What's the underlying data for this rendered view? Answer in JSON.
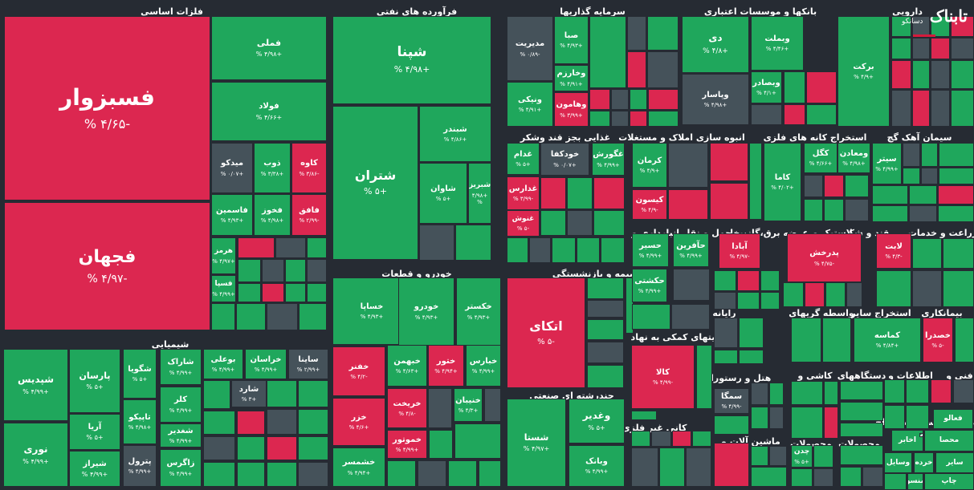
{
  "colors": {
    "background": "#262b33",
    "positive": "#1fa75c",
    "positive_light": "#27c36f",
    "negative": "#dc2750",
    "negative_light": "#e8325f",
    "neutral": "#45525a"
  },
  "watermark": {
    "main": "تابناک",
    "sub": "دسانکو"
  },
  "sectors": [
    {
      "name": "فلزات اساسی"
    },
    {
      "name": "فرآورده های نفتی"
    },
    {
      "name": "سرمایه گذاریها"
    },
    {
      "name": "بانکها و موسسات اعتباری"
    },
    {
      "name": "دارویی"
    },
    {
      "name": "شیمیایی"
    },
    {
      "name": "خودرو و قطعات"
    },
    {
      "name": "بیمه و بازنشستگی"
    },
    {
      "name": "غذایی بجز قند وشکر"
    },
    {
      "name": "انبوه سازی املاک و مستغلات"
    },
    {
      "name": "استخراج کانه های فلزی"
    },
    {
      "name": "سیمان آهک گچ"
    },
    {
      "name": "حمل و نقل انبارداری و"
    },
    {
      "name": "عرضه برق،گاز،بخار"
    },
    {
      "name": "لاستیک و"
    },
    {
      "name": "قند و شکر"
    },
    {
      "name": "زراعت و خدمات"
    },
    {
      "name": "رایانه"
    },
    {
      "name": "واسطه گریهای"
    },
    {
      "name": "استخراج سایر"
    },
    {
      "name": "بیمانکاری"
    },
    {
      "name": "فعالیتهای کمکی به نهاد"
    },
    {
      "name": "هتل و رستوران"
    },
    {
      "name": "کاشی و"
    },
    {
      "name": "دستگاههای"
    },
    {
      "name": "اطلاعات و"
    },
    {
      "name": "فنی و"
    },
    {
      "name": "چندرشته ای صنعتی"
    },
    {
      "name": "کانی غیر فلزی"
    },
    {
      "name": "ماشین آلات و"
    },
    {
      "name": "محصولات"
    },
    {
      "name": "محصولات"
    },
    {
      "name": "مخابرات"
    },
    {
      "name": "سایر"
    },
    {
      "name": "استخراج"
    }
  ],
  "stocks": [
    {
      "name": "فسبزوار",
      "pct": "-۴/۶۵ %",
      "trend": "neg"
    },
    {
      "name": "فجهان",
      "pct": "-۴/۹۷ %",
      "trend": "neg"
    },
    {
      "name": "فملی",
      "pct": "+۴/۹۸ %",
      "trend": "pos"
    },
    {
      "name": "فولاد",
      "pct": "+۴/۶۶ %",
      "trend": "pos"
    },
    {
      "name": "میدکو",
      "pct": "+۰/۰۷ %",
      "trend": "neu"
    },
    {
      "name": "ذوب",
      "pct": "+۳/۳۸ %",
      "trend": "pos"
    },
    {
      "name": "کاوه",
      "pct": "-۳/۸۶ %",
      "trend": "neg"
    },
    {
      "name": "فاسمین",
      "pct": "+۴/۹۳ %",
      "trend": "pos"
    },
    {
      "name": "فخوز",
      "pct": "+۴/۹۸ %",
      "trend": "pos"
    },
    {
      "name": "فافق",
      "pct": "-۲/۹۹ %",
      "trend": "neg"
    },
    {
      "name": "هرمز",
      "pct": "+۴/۹۷ %",
      "trend": "pos"
    },
    {
      "name": "فسپا",
      "pct": "+۴/۹۹ %",
      "trend": "pos"
    },
    {
      "name": "شپنا",
      "pct": "+۴/۹۸ %",
      "trend": "pos"
    },
    {
      "name": "شتران",
      "pct": "+۵ %",
      "trend": "pos"
    },
    {
      "name": "شبندر",
      "pct": "+۴/۸۶ %",
      "trend": "pos"
    },
    {
      "name": "شاوان",
      "pct": "+۵ %",
      "trend": "pos"
    },
    {
      "name": "شبریز",
      "pct": "+۴/۹۸ %",
      "trend": "pos"
    },
    {
      "name": "مدیریت",
      "pct": "-۰/۸۹ %",
      "trend": "neu"
    },
    {
      "name": "صبا",
      "pct": "+۴/۹۳ %",
      "trend": "pos"
    },
    {
      "name": "وخارزم",
      "pct": "+۴/۹۱ %",
      "trend": "pos"
    },
    {
      "name": "ونیکی",
      "pct": "+۴/۹۱ %",
      "trend": "pos"
    },
    {
      "name": "وهامون",
      "pct": "+۳/۹۹ %",
      "trend": "neg"
    },
    {
      "name": "دی",
      "pct": "+۴/۸ %",
      "trend": "pos"
    },
    {
      "name": "وبملت",
      "pct": "+۴/۴۶ %",
      "trend": "pos"
    },
    {
      "name": "وپاسار",
      "pct": "+۴/۹۸ %",
      "trend": "neu"
    },
    {
      "name": "وبصادر",
      "pct": "+۴/۱ %",
      "trend": "pos"
    },
    {
      "name": "برکت",
      "pct": "+۴/۹ %",
      "trend": "pos"
    },
    {
      "name": "شپدیس",
      "pct": "+۴/۹۹ %",
      "trend": "pos"
    },
    {
      "name": "نوری",
      "pct": "+۴/۹۹ %",
      "trend": "pos"
    },
    {
      "name": "پارسان",
      "pct": "+۵ %",
      "trend": "pos"
    },
    {
      "name": "آریا",
      "pct": "+۵ %",
      "trend": "pos"
    },
    {
      "name": "شیراز",
      "pct": "+۴/۹۹ %",
      "trend": "pos"
    },
    {
      "name": "شگویا",
      "pct": "+۵ %",
      "trend": "pos"
    },
    {
      "name": "تاپیکو",
      "pct": "+۴/۹۸ %",
      "trend": "pos"
    },
    {
      "name": "پترول",
      "pct": "+۴/۹۹ %",
      "trend": "neu"
    },
    {
      "name": "شاراک",
      "pct": "+۴/۹۹ %",
      "trend": "pos"
    },
    {
      "name": "بوعلی",
      "pct": "+۴/۹۹ %",
      "trend": "pos"
    },
    {
      "name": "خراسان",
      "pct": "+۴/۹۹ %",
      "trend": "pos"
    },
    {
      "name": "ساینا",
      "pct": "+۲/۹۹ %",
      "trend": "neu"
    },
    {
      "name": "کلر",
      "pct": "+۴/۹۹ %",
      "trend": "pos"
    },
    {
      "name": "شغدیر",
      "pct": "+۴/۹۹ %",
      "trend": "pos"
    },
    {
      "name": "زاگرس",
      "pct": "+۴/۹۹ %",
      "trend": "pos"
    },
    {
      "name": "شارد",
      "pct": "+۳ %",
      "trend": "neu"
    },
    {
      "name": "خساپا",
      "pct": "+۴/۹۳ %",
      "trend": "pos"
    },
    {
      "name": "خودرو",
      "pct": "+۴/۹۳ %",
      "trend": "pos"
    },
    {
      "name": "خکستر",
      "pct": "+۴/۹۳ %",
      "trend": "pos"
    },
    {
      "name": "خفنر",
      "pct": "-۴/۲ %",
      "trend": "neg"
    },
    {
      "name": "خبهمن",
      "pct": "+۴/۶۳ %",
      "trend": "pos"
    },
    {
      "name": "ختور",
      "pct": "+۴/۹۴ %",
      "trend": "neg"
    },
    {
      "name": "خبارس",
      "pct": "+۴/۹۹ %",
      "trend": "pos"
    },
    {
      "name": "خزر",
      "pct": "+۴/۶ %",
      "trend": "neg"
    },
    {
      "name": "خریخت",
      "pct": "-۴/۸ %",
      "trend": "neg"
    },
    {
      "name": "خنیبان",
      "pct": "+۴/۳ %",
      "trend": "pos"
    },
    {
      "name": "خموتور",
      "pct": "+۴/۹۹ %",
      "trend": "neg"
    },
    {
      "name": "خشمسر",
      "pct": "+۴/۹۴ %",
      "trend": "pos"
    },
    {
      "name": "اتکای",
      "pct": "-۵ %",
      "trend": "neg"
    },
    {
      "name": "غدام",
      "pct": "+۵ %",
      "trend": "pos"
    },
    {
      "name": "خودکفا",
      "pct": "+۰/۰۷ %",
      "trend": "neu"
    },
    {
      "name": "غگورش",
      "pct": "+۴/۹۹ %",
      "trend": "pos"
    },
    {
      "name": "غدارس",
      "pct": "-۳/۹۹ %",
      "trend": "neg"
    },
    {
      "name": "غنوش",
      "pct": "-۵ %",
      "trend": "neg"
    },
    {
      "name": "کرمان",
      "pct": "+۴/۹ %",
      "trend": "pos"
    },
    {
      "name": "کیسون",
      "pct": "-۴/۹ %",
      "trend": "neg"
    },
    {
      "name": "کگل",
      "pct": "+۴/۶۶ %",
      "trend": "pos"
    },
    {
      "name": "ومعادن",
      "pct": "+۴/۹۸ %",
      "trend": "pos"
    },
    {
      "name": "کاما",
      "pct": "+۴/۰۲ %",
      "trend": "pos"
    },
    {
      "name": "سیتر",
      "pct": "+۴/۹۹ %",
      "trend": "pos"
    },
    {
      "name": "حسیر",
      "pct": "+۴/۹۹ %",
      "trend": "pos"
    },
    {
      "name": "حآفرین",
      "pct": "+۴/۹۹ %",
      "trend": "pos"
    },
    {
      "name": "حکشتی",
      "pct": "+۴/۹۹ %",
      "trend": "pos"
    },
    {
      "name": "آبادا",
      "pct": "-۴/۹۷ %",
      "trend": "neg"
    },
    {
      "name": "پدرخش",
      "pct": "-۴/۷۵ %",
      "trend": "neg"
    },
    {
      "name": "لابت",
      "pct": "-۴/۳ %",
      "trend": "neg"
    },
    {
      "name": "کماسه",
      "pct": "+۴/۸۴ %",
      "trend": "pos"
    },
    {
      "name": "خصدرا",
      "pct": "-۵ %",
      "trend": "neg"
    },
    {
      "name": "کالا",
      "pct": "-۴/۹۹ %",
      "trend": "neg"
    },
    {
      "name": "سمگا",
      "pct": "-۴/۹۹ %",
      "trend": "neu"
    },
    {
      "name": "شستا",
      "pct": "+۴/۹۷ %",
      "trend": "pos"
    },
    {
      "name": "وغدیر",
      "pct": "+۵ %",
      "trend": "pos"
    },
    {
      "name": "وبانک",
      "pct": "+۴/۹۹ %",
      "trend": "pos"
    },
    {
      "name": "چدن",
      "pct": "+۵ %",
      "trend": "pos"
    },
    {
      "name": "محصا",
      "pct": "",
      "trend": "pos"
    },
    {
      "name": "اخابر",
      "pct": "",
      "trend": "pos"
    },
    {
      "name": "وسایل",
      "pct": "",
      "trend": "pos"
    },
    {
      "name": "خرده",
      "pct": "",
      "trend": "pos"
    },
    {
      "name": "سایر",
      "pct": "",
      "trend": "pos"
    },
    {
      "name": "چاپ",
      "pct": "",
      "trend": "pos"
    },
    {
      "name": "منسو",
      "pct": "",
      "trend": "pos"
    },
    {
      "name": "فعالو",
      "pct": "",
      "trend": "pos"
    },
    {
      "name": "اسنخ",
      "pct": "",
      "trend": "pos"
    }
  ]
}
